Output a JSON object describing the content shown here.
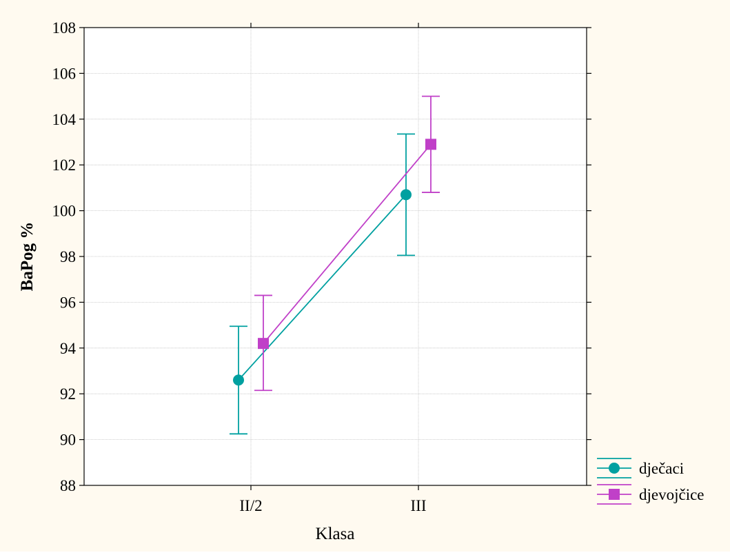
{
  "colors": {
    "background": "#FFFAF0",
    "plot_area": "#FFFFFF",
    "grid": "#BFBFBF",
    "djecaci": "#00A0A0",
    "djevojcice": "#C040C8"
  },
  "chart_data": {
    "type": "line",
    "xlabel": "Klasa",
    "ylabel": "BaPog %",
    "categories": [
      "II/2",
      "III"
    ],
    "ylim": [
      88,
      108
    ],
    "yticks": [
      88,
      90,
      92,
      94,
      96,
      98,
      100,
      102,
      104,
      106,
      108
    ],
    "grid": true,
    "legend_position": "bottom-right",
    "series": [
      {
        "name": "dječaci",
        "marker": "circle",
        "values": [
          92.6,
          100.7
        ],
        "lower": [
          90.25,
          98.05
        ],
        "upper": [
          94.95,
          103.35
        ]
      },
      {
        "name": "djevojčice",
        "marker": "square",
        "values": [
          94.2,
          102.9
        ],
        "lower": [
          92.15,
          100.8
        ],
        "upper": [
          96.3,
          105.0
        ]
      }
    ]
  }
}
